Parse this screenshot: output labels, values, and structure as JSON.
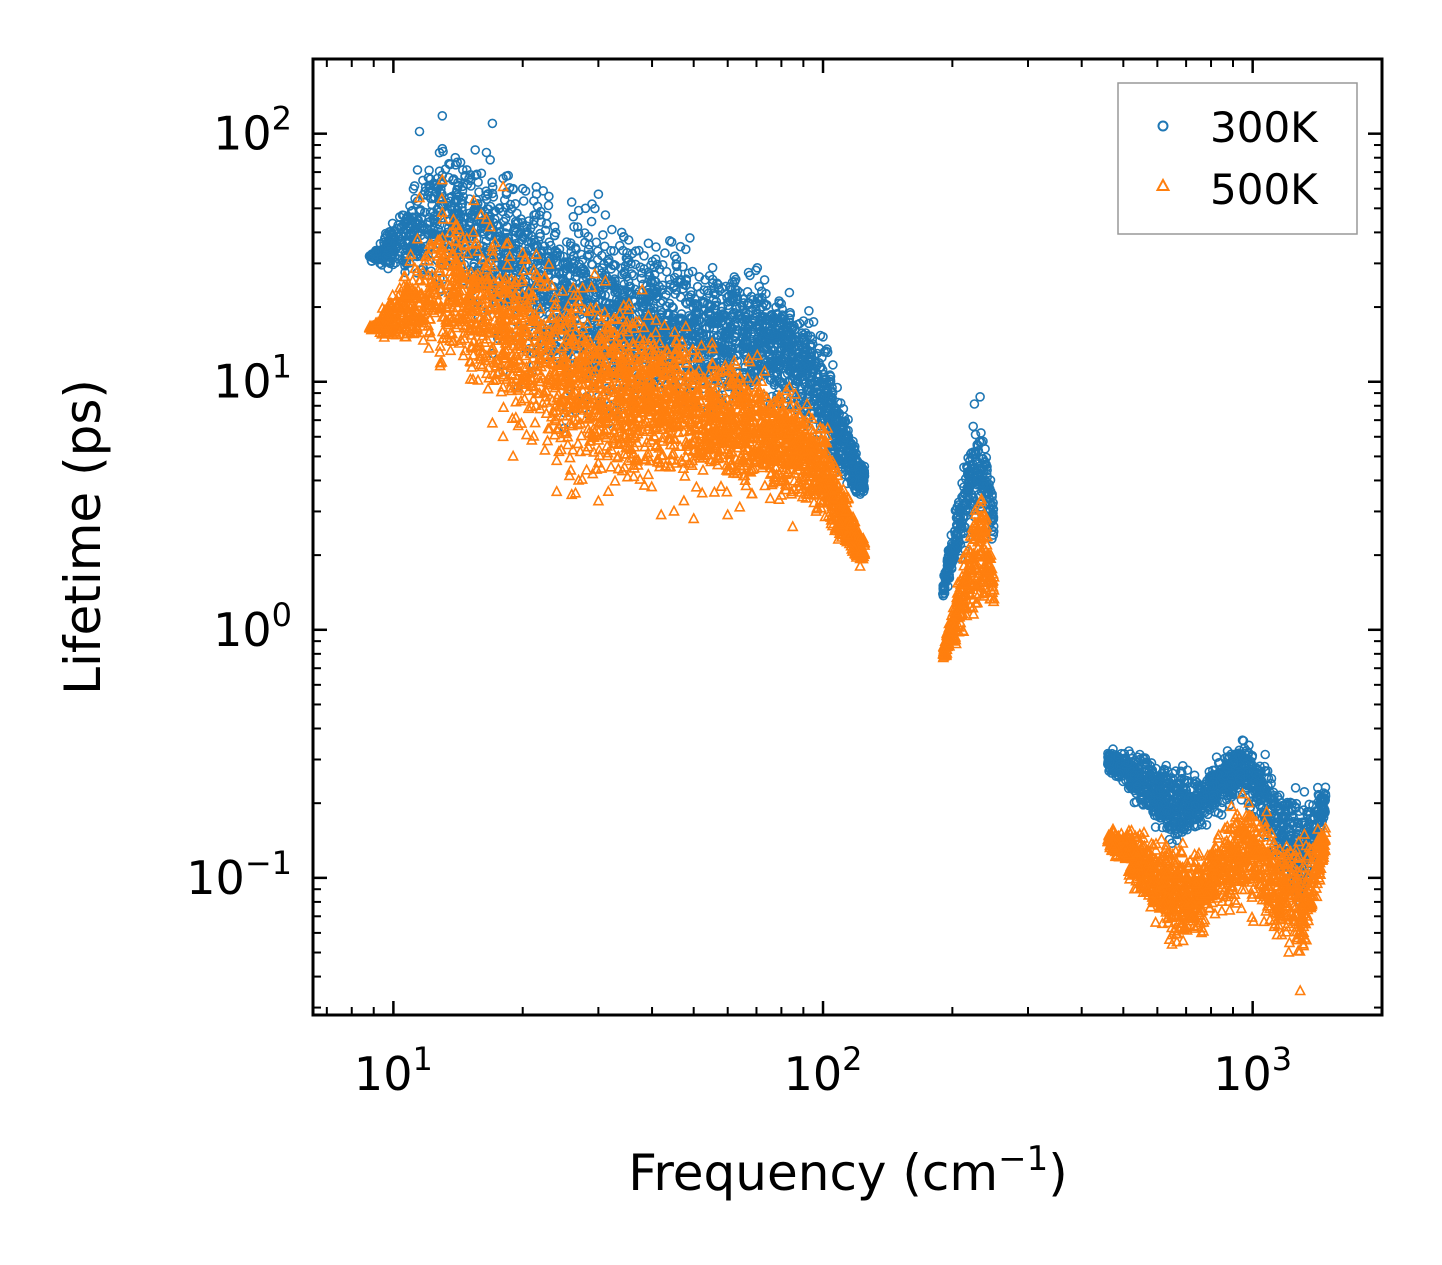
{
  "chart_data": {
    "type": "scatter",
    "title": "",
    "xlabel": "Frequency (cm",
    "xlabel_sup": "−1",
    "xlabel_end": ")",
    "ylabel": "Lifetime (ps)",
    "xscale": "log",
    "yscale": "log",
    "xlim": [
      6.5,
      2000
    ],
    "ylim": [
      0.028,
      200
    ],
    "x_ticks": [
      {
        "value": 10,
        "base": "10",
        "exp": "1"
      },
      {
        "value": 100,
        "base": "10",
        "exp": "2"
      },
      {
        "value": 1000,
        "base": "10",
        "exp": "3"
      }
    ],
    "y_ticks": [
      {
        "value": 0.1,
        "base": "10",
        "exp": "−1"
      },
      {
        "value": 1,
        "base": "10",
        "exp": "0"
      },
      {
        "value": 10,
        "base": "10",
        "exp": "1"
      },
      {
        "value": 100,
        "base": "10",
        "exp": "2"
      }
    ],
    "legend_position": "top-right",
    "series": [
      {
        "name": "300K",
        "marker": "circle",
        "color": "#1f77b4",
        "clusters": [
          {
            "x_range": [
              8.8,
              125
            ],
            "y_min_at": [
              [
                9,
                30
              ],
              [
                30,
                6
              ],
              [
                80,
                7
              ],
              [
                110,
                3.5
              ],
              [
                122,
                3.2
              ]
            ],
            "y_max_at": [
              [
                9,
                34
              ],
              [
                13,
                120
              ],
              [
                30,
                55
              ],
              [
                75,
                30
              ],
              [
                100,
                20
              ],
              [
                122,
                5
              ]
            ],
            "density": "high"
          },
          {
            "x_range": [
              190,
              250
            ],
            "y_min_at": [
              [
                190,
                1.3
              ],
              [
                220,
                2.0
              ],
              [
                240,
                2.5
              ],
              [
                250,
                2.0
              ]
            ],
            "y_max_at": [
              [
                190,
                1.6
              ],
              [
                225,
                9.5
              ],
              [
                235,
                10.5
              ],
              [
                250,
                3.5
              ]
            ],
            "density": "high"
          },
          {
            "x_range": [
              460,
              1480
            ],
            "y_min_at": [
              [
                460,
                0.26
              ],
              [
                650,
                0.12
              ],
              [
                950,
                0.2
              ],
              [
                1300,
                0.06
              ],
              [
                1480,
                0.17
              ]
            ],
            "y_max_at": [
              [
                460,
                0.34
              ],
              [
                560,
                0.35
              ],
              [
                750,
                0.28
              ],
              [
                950,
                0.4
              ],
              [
                1300,
                0.25
              ],
              [
                1480,
                0.25
              ]
            ],
            "density": "high"
          }
        ],
        "outliers": [
          [
            8.8,
            32
          ],
          [
            11,
            34
          ],
          [
            11.5,
            102
          ],
          [
            13,
            118
          ],
          [
            13,
            87
          ],
          [
            13,
            68
          ],
          [
            13.5,
            55
          ],
          [
            15,
            66
          ],
          [
            15.5,
            86
          ],
          [
            17,
            110
          ],
          [
            18,
            66
          ],
          [
            19,
            60
          ],
          [
            20,
            60
          ],
          [
            19.5,
            44
          ],
          [
            18.5,
            26
          ],
          [
            17,
            13
          ],
          [
            18,
            11
          ],
          [
            19.5,
            9.5
          ],
          [
            21,
            11
          ],
          [
            25,
            7.5
          ],
          [
            25,
            6.5
          ],
          [
            26,
            53
          ],
          [
            27,
            49
          ],
          [
            28,
            50
          ],
          [
            29,
            52
          ],
          [
            30,
            57
          ],
          [
            34,
            40
          ],
          [
            44,
            37
          ],
          [
            49,
            38
          ]
        ]
      },
      {
        "name": "500K",
        "marker": "triangle",
        "color": "#ff7f0e",
        "clusters": [
          {
            "x_range": [
              8.8,
              125
            ],
            "y_min_at": [
              [
                9,
                16
              ],
              [
                25,
                3.3
              ],
              [
                60,
                3.0
              ],
              [
                90,
                2.8
              ],
              [
                110,
                2.0
              ],
              [
                122,
                1.8
              ]
            ],
            "y_max_at": [
              [
                9,
                17
              ],
              [
                13,
                65
              ],
              [
                30,
                30
              ],
              [
                70,
                14
              ],
              [
                100,
                8
              ],
              [
                122,
                2.5
              ]
            ],
            "density": "high"
          },
          {
            "x_range": [
              190,
              250
            ],
            "y_min_at": [
              [
                190,
                0.72
              ],
              [
                220,
                0.95
              ],
              [
                240,
                1.2
              ],
              [
                250,
                1.1
              ]
            ],
            "y_max_at": [
              [
                190,
                0.85
              ],
              [
                225,
                3.8
              ],
              [
                235,
                4.8
              ],
              [
                250,
                1.8
              ]
            ],
            "density": "high"
          },
          {
            "x_range": [
              460,
              1480
            ],
            "y_min_at": [
              [
                460,
                0.13
              ],
              [
                650,
                0.045
              ],
              [
                950,
                0.07
              ],
              [
                1300,
                0.035
              ],
              [
                1480,
                0.12
              ]
            ],
            "y_max_at": [
              [
                460,
                0.16
              ],
              [
                560,
                0.17
              ],
              [
                750,
                0.14
              ],
              [
                950,
                0.25
              ],
              [
                1300,
                0.17
              ],
              [
                1480,
                0.17
              ]
            ],
            "density": "high"
          }
        ],
        "outliers": [
          [
            8.8,
            16.5
          ],
          [
            11,
            19
          ],
          [
            11.5,
            55
          ],
          [
            13,
            48
          ],
          [
            13,
            38
          ],
          [
            13,
            65
          ],
          [
            14,
            31
          ],
          [
            15,
            18
          ],
          [
            16,
            47
          ],
          [
            17,
            35
          ],
          [
            17,
            6.8
          ],
          [
            18,
            61
          ],
          [
            18,
            6.0
          ],
          [
            19,
            5.0
          ],
          [
            20,
            33
          ],
          [
            21,
            5.8
          ],
          [
            24,
            4.8
          ],
          [
            24,
            3.6
          ],
          [
            26,
            3.5
          ],
          [
            30,
            3.3
          ],
          [
            42,
            2.9
          ],
          [
            45,
            3.0
          ],
          [
            50,
            2.8
          ],
          [
            60,
            2.9
          ],
          [
            85,
            2.6
          ],
          [
            122,
            1.8
          ],
          [
            1290,
            0.035
          ]
        ]
      }
    ]
  }
}
